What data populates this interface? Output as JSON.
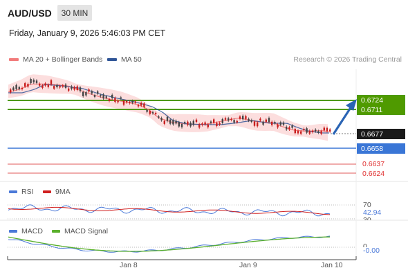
{
  "header": {
    "pair": "AUD/USD",
    "timeframe": "30 MIN",
    "datetime": "Friday, January 9, 2026 5:46:03 PM CET"
  },
  "legend": {
    "ma20_label": "MA 20 + Bollinger Bands",
    "ma50_label": "MA 50",
    "credit": "Research © 2026 Trading Central"
  },
  "colors": {
    "ma20": "#f27b7b",
    "ma50": "#2f5597",
    "bollinger_fill": "#fbd6d6",
    "green_level": "#4f9a00",
    "blue_level": "#3a76d6",
    "red_level": "#e05a5a",
    "current_price_bg": "#1a1a1a",
    "arrow": "#2a64b4",
    "rsi": "#4b79d8",
    "rsi_ma": "#d01f1f",
    "macd": "#4b79d8",
    "macd_signal": "#5ab02d",
    "candle_up": "#444444",
    "candle_down": "#c81e1e"
  },
  "price_levels": {
    "resistance_2": "0.6724",
    "resistance_1": "0.6711",
    "current": "0.6677",
    "pivot": "0.6658",
    "support_1": "0.6637",
    "support_2": "0.6624"
  },
  "rsi_panel": {
    "rsi_label": "RSI",
    "ma_label": "9MA",
    "level_70": "70",
    "value": "42.94",
    "level_30": "30"
  },
  "macd_panel": {
    "macd_label": "MACD",
    "signal_label": "MACD Signal",
    "zero": "0",
    "value": "-0.00"
  },
  "x_axis": {
    "ticks": [
      "Jan 8",
      "Jan 9",
      "Jan 10"
    ]
  }
}
